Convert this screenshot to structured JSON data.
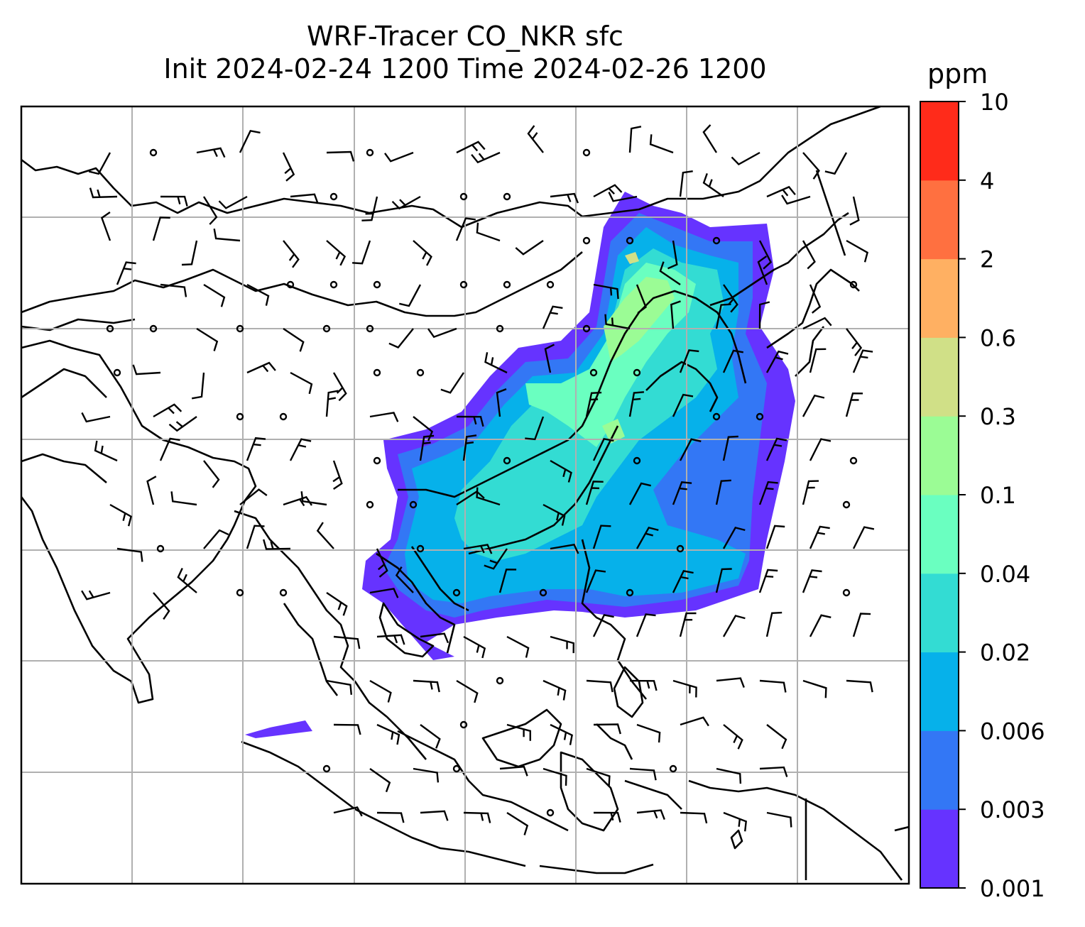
{
  "title_line1": "WRF-Tracer CO_NKR sfc",
  "title_line2": "Init 2024-02-24 1200 Time 2024-02-26 1200",
  "colorbar": {
    "unit": "ppm",
    "levels": [
      "0.001",
      "0.003",
      "0.006",
      "0.02",
      "0.04",
      "0.1",
      "0.3",
      "0.6",
      "2",
      "4",
      "10"
    ],
    "colors": [
      "#6633ff",
      "#3377f5",
      "#06b1ea",
      "#33dcd3",
      "#6affc0",
      "#9bfc95",
      "#d0e087",
      "#ffb062",
      "#ff7040",
      "#ff2b1a"
    ]
  },
  "map": {
    "gridlines": true,
    "overlay": "wind-barbs"
  }
}
